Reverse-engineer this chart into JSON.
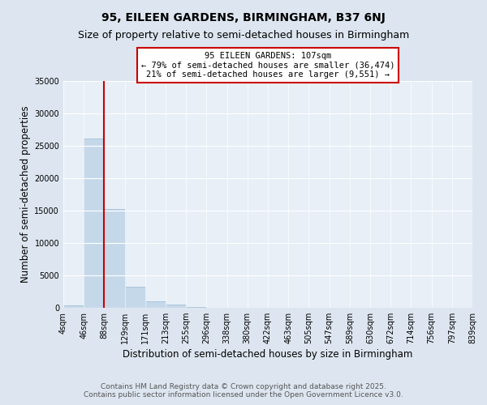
{
  "title": "95, EILEEN GARDENS, BIRMINGHAM, B37 6NJ",
  "subtitle": "Size of property relative to semi-detached houses in Birmingham",
  "xlabel": "Distribution of semi-detached houses by size in Birmingham",
  "ylabel": "Number of semi-detached properties",
  "bin_edges": [
    "4sqm",
    "46sqm",
    "88sqm",
    "129sqm",
    "171sqm",
    "213sqm",
    "255sqm",
    "296sqm",
    "338sqm",
    "380sqm",
    "422sqm",
    "463sqm",
    "505sqm",
    "547sqm",
    "589sqm",
    "630sqm",
    "672sqm",
    "714sqm",
    "756sqm",
    "797sqm",
    "839sqm"
  ],
  "bar_values": [
    400,
    26100,
    15200,
    3300,
    1050,
    450,
    150,
    50,
    10,
    0,
    0,
    0,
    0,
    0,
    0,
    0,
    0,
    0,
    0,
    0
  ],
  "bar_color": "#c5d8ea",
  "bar_edge_color": "#9ab8d0",
  "red_line_bin_edge": 2,
  "annotation_title": "95 EILEEN GARDENS: 107sqm",
  "annotation_line1": "← 79% of semi-detached houses are smaller (36,474)",
  "annotation_line2": "21% of semi-detached houses are larger (9,551) →",
  "annotation_box_facecolor": "#ffffff",
  "annotation_box_edgecolor": "#cc0000",
  "red_line_color": "#cc0000",
  "ylim": [
    0,
    35000
  ],
  "yticks": [
    0,
    5000,
    10000,
    15000,
    20000,
    25000,
    30000,
    35000
  ],
  "bg_color": "#dde6f0",
  "plot_bg_color": "#e8eff7",
  "footer_line1": "Contains HM Land Registry data © Crown copyright and database right 2025.",
  "footer_line2": "Contains public sector information licensed under the Open Government Licence v3.0.",
  "title_fontsize": 10,
  "subtitle_fontsize": 9,
  "axis_label_fontsize": 8.5,
  "tick_fontsize": 7,
  "footer_fontsize": 6.5
}
